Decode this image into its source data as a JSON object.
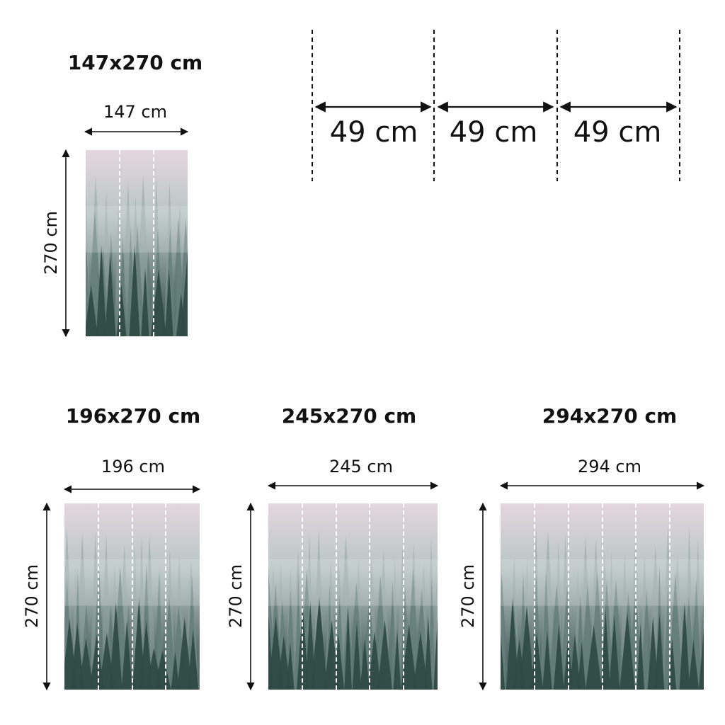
{
  "panels": [
    {
      "title": "147x270 cm",
      "width_label": "147 cm",
      "height_label": "270 cm",
      "strips": 3
    },
    {
      "title": "196x270 cm",
      "width_label": "196 cm",
      "height_label": "270 cm",
      "strips": 4
    },
    {
      "title": "245x270 cm",
      "width_label": "245 cm",
      "height_label": "270 cm",
      "strips": 5
    },
    {
      "title": "294x270 cm",
      "width_label": "294 cm",
      "height_label": "270 cm",
      "strips": 6
    }
  ],
  "strip_widths": [
    "49 cm",
    "49 cm",
    "49 cm"
  ],
  "colors": {
    "sky": "#e4d6de",
    "fog": "#b9c6c5",
    "forest": "#2c4643",
    "line": "#111111"
  }
}
